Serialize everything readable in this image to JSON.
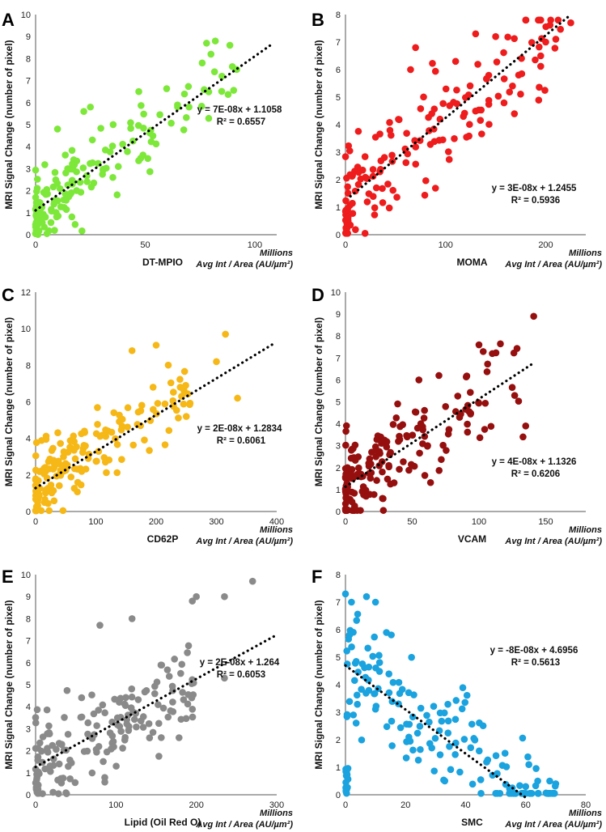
{
  "chart_data": [
    {
      "panel": "A",
      "type": "scatter",
      "color": "#7de83a",
      "ylabel": "MRI Signal Change (number of pixel)",
      "xlabel": "DT-MPIO",
      "units_top": "Millions",
      "units_bottom": "Avg Int / Area (AU/µm²)",
      "xlim": [
        0,
        110
      ],
      "ylim": [
        0,
        10
      ],
      "xticks": [
        0,
        50,
        100
      ],
      "yticks": [
        0,
        1,
        2,
        3,
        4,
        5,
        6,
        7,
        8,
        9,
        10
      ],
      "tick_labels_x": [
        "0",
        "50",
        "100"
      ],
      "tick_labels_y": [
        "0",
        "1",
        "2",
        "3",
        "4",
        "5",
        "6",
        "7",
        "8",
        "9",
        "10"
      ],
      "equation": "y = 7E-08x + 1.1058",
      "r2": "R² = 0.6557",
      "trend": {
        "slope": 0.07,
        "intercept": 1.1058,
        "x_from": 0,
        "x_to": 108
      },
      "seed": 11,
      "n": 150,
      "noise": 0.85,
      "xmax_pts": 95,
      "skew": 2.0,
      "extra": [
        [
          78,
          8.7
        ],
        [
          82,
          8.8
        ],
        [
          80,
          8.2
        ],
        [
          76,
          7.8
        ],
        [
          85,
          7.2
        ],
        [
          70,
          5.8
        ],
        [
          25,
          5.8
        ],
        [
          22,
          5.6
        ],
        [
          10,
          4.8
        ]
      ]
    },
    {
      "panel": "B",
      "type": "scatter",
      "color": "#ee1c1c",
      "ylabel": "MRI Signal Change (number of pixel)",
      "xlabel": "MOMA",
      "units_top": "Millions",
      "units_bottom": "Avg Int / Area (AU/µm²)",
      "xlim": [
        0,
        240
      ],
      "ylim": [
        0,
        8
      ],
      "xticks": [
        0,
        100,
        200
      ],
      "yticks": [
        0,
        1,
        2,
        3,
        4,
        5,
        6,
        7,
        8
      ],
      "tick_labels_x": [
        "0",
        "100",
        "200"
      ],
      "tick_labels_y": [
        "0",
        "1",
        "2",
        "3",
        "4",
        "5",
        "6",
        "7",
        "8"
      ],
      "equation": "y = 3E-08x + 1.2455",
      "r2": "R² = 0.5936",
      "trend": {
        "slope": 0.03,
        "intercept": 1.2455,
        "x_from": 5,
        "x_to": 225
      },
      "seed": 23,
      "n": 150,
      "noise": 1.05,
      "xmax_pts": 215,
      "skew": 1.6,
      "extra": [
        [
          225,
          7.7
        ],
        [
          200,
          7.0
        ],
        [
          195,
          6.5
        ],
        [
          150,
          7.2
        ],
        [
          130,
          7.3
        ],
        [
          110,
          6.3
        ],
        [
          70,
          6.8
        ],
        [
          65,
          6.0
        ]
      ]
    },
    {
      "panel": "C",
      "type": "scatter",
      "color": "#f6b817",
      "ylabel": "MRI Signal Change (number of pixel)",
      "xlabel": "CD62P",
      "units_top": "Millions",
      "units_bottom": "Avg Int / Area (AU/µm²)",
      "xlim": [
        0,
        400
      ],
      "ylim": [
        0,
        12
      ],
      "xticks": [
        0,
        100,
        200,
        300,
        400
      ],
      "yticks": [
        0,
        2,
        4,
        6,
        8,
        10,
        12
      ],
      "tick_labels_x": [
        "0",
        "100",
        "200",
        "300",
        "400"
      ],
      "tick_labels_y": [
        "0",
        "2",
        "4",
        "6",
        "8",
        "10",
        "12"
      ],
      "equation": "y = 2E-08x + 1.2834",
      "r2": "R² = 0.6061",
      "trend": {
        "slope": 0.02,
        "intercept": 1.2834,
        "x_from": 0,
        "x_to": 395
      },
      "seed": 37,
      "n": 160,
      "noise": 1.1,
      "xmax_pts": 260,
      "skew": 1.8,
      "extra": [
        [
          240,
          6.8
        ],
        [
          300,
          8.2
        ],
        [
          315,
          9.7
        ],
        [
          335,
          6.2
        ],
        [
          200,
          9.1
        ],
        [
          160,
          8.8
        ],
        [
          250,
          5.2
        ]
      ]
    },
    {
      "panel": "D",
      "type": "scatter",
      "color": "#960f0f",
      "ylabel": "MRI Signal Change (number of pixel)",
      "xlabel": "VCAM",
      "units_top": "Millions",
      "units_bottom": "Avg Int / Area (AU/µm²)",
      "xlim": [
        0,
        180
      ],
      "ylim": [
        0,
        10
      ],
      "xticks": [
        0,
        50,
        100,
        150
      ],
      "yticks": [
        0,
        1,
        2,
        3,
        4,
        5,
        6,
        7,
        8,
        9,
        10
      ],
      "tick_labels_x": [
        "0",
        "50",
        "100",
        "150"
      ],
      "tick_labels_y": [
        "0",
        "1",
        "2",
        "3",
        "4",
        "5",
        "6",
        "7",
        "8",
        "9",
        "10"
      ],
      "equation": "y = 4E-08x + 1.1326",
      "r2": "R² = 0.6206",
      "trend": {
        "slope": 0.04,
        "intercept": 1.1326,
        "x_from": 0,
        "x_to": 142
      },
      "seed": 51,
      "n": 160,
      "noise": 1.05,
      "xmax_pts": 130,
      "skew": 1.7,
      "extra": [
        [
          141,
          8.9
        ],
        [
          100,
          7.6
        ],
        [
          110,
          7.2
        ],
        [
          70,
          6.2
        ],
        [
          55,
          6.0
        ],
        [
          135,
          3.9
        ],
        [
          133,
          3.4
        ]
      ]
    },
    {
      "panel": "E",
      "type": "scatter",
      "color": "#8a8a8a",
      "ylabel": "MRI Signal Change (number of pixel)",
      "xlabel": "Lipid (Oil Red O)",
      "units_top": "Millions",
      "units_bottom": "Avg Int / Area (AU/µm²)",
      "xlim": [
        0,
        300
      ],
      "ylim": [
        0,
        10
      ],
      "xticks": [
        0,
        100,
        200,
        300
      ],
      "yticks": [
        0,
        1,
        2,
        3,
        4,
        5,
        6,
        7,
        8,
        9,
        10
      ],
      "tick_labels_x": [
        "0",
        "100",
        "200",
        "300"
      ],
      "tick_labels_y": [
        "0",
        "1",
        "2",
        "3",
        "4",
        "5",
        "6",
        "7",
        "8",
        "9",
        "10"
      ],
      "equation": "y = 2E-08x + 1.264",
      "r2": "R² = 0.6053",
      "trend": {
        "slope": 0.02,
        "intercept": 1.264,
        "x_from": 0,
        "x_to": 298
      },
      "seed": 67,
      "n": 160,
      "noise": 1.1,
      "xmax_pts": 200,
      "skew": 1.6,
      "extra": [
        [
          270,
          9.7
        ],
        [
          235,
          9.0
        ],
        [
          195,
          8.8
        ],
        [
          200,
          9.0
        ],
        [
          80,
          7.7
        ],
        [
          120,
          8.0
        ],
        [
          235,
          5.3
        ]
      ]
    },
    {
      "panel": "F",
      "type": "scatter",
      "color": "#1aa3de",
      "ylabel": "MRI Signal Change (number of pixel)",
      "xlabel": "SMC",
      "units_top": "Millions",
      "units_bottom": "Avg Int / Area (AU/µm²)",
      "xlim": [
        0,
        80
      ],
      "ylim": [
        0,
        8
      ],
      "xticks": [
        0,
        20,
        40,
        60,
        80
      ],
      "yticks": [
        0,
        1,
        2,
        3,
        4,
        5,
        6,
        7,
        8
      ],
      "tick_labels_x": [
        "0",
        "20",
        "40",
        "60",
        "80"
      ],
      "tick_labels_y": [
        "0",
        "1",
        "2",
        "3",
        "4",
        "5",
        "6",
        "7",
        "8"
      ],
      "equation": "y = -8E-08x + 4.6956",
      "r2": "R² = 0.5613",
      "trend": {
        "slope": -0.08,
        "intercept": 4.6956,
        "x_from": 0,
        "x_to": 60
      },
      "seed": 79,
      "n": 160,
      "noise": 1.1,
      "xmax_pts": 70,
      "skew": 1.1,
      "extra": [
        [
          0,
          7.3
        ],
        [
          2,
          7.0
        ],
        [
          7,
          7.2
        ],
        [
          10,
          7.0
        ],
        [
          60,
          0.3
        ],
        [
          64,
          0.5
        ],
        [
          70,
          0.4
        ],
        [
          68,
          0.5
        ]
      ]
    }
  ]
}
